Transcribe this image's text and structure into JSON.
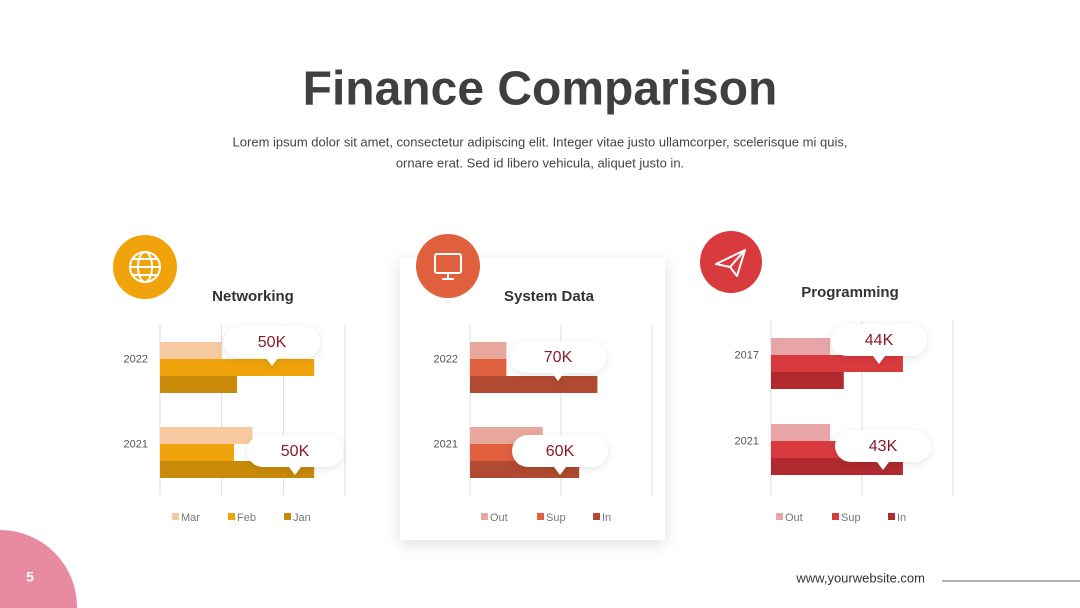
{
  "header": {
    "title": "Finance Comparison",
    "subtitle_line1": "Lorem ipsum dolor sit amet, consectetur adipiscing elit. Integer vitae justo ullamcorper, scelerisque mi quis,",
    "subtitle_line2": "ornare erat. Sed id libero vehicula, aliquet justo in."
  },
  "chart_data": [
    {
      "type": "bar",
      "orientation": "horizontal",
      "title": "Networking",
      "categories": [
        "2022",
        "2021"
      ],
      "xlim": [
        0,
        3
      ],
      "xticks": [
        0,
        1,
        2,
        3
      ],
      "grid": true,
      "series": [
        {
          "name": "Mar",
          "color": "#f6c9a0",
          "values": [
            1.0,
            1.5
          ]
        },
        {
          "name": "Feb",
          "color": "#f0a30a",
          "values": [
            2.5,
            1.2
          ]
        },
        {
          "name": "Jan",
          "color": "#c98a0a",
          "values": [
            1.25,
            2.5
          ]
        }
      ],
      "annotations": [
        "50K",
        "50K"
      ]
    },
    {
      "type": "bar",
      "orientation": "horizontal",
      "title": "System Data",
      "categories": [
        "2022",
        "2021"
      ],
      "xlim": [
        0,
        2
      ],
      "xticks": [
        0,
        1,
        2
      ],
      "grid": true,
      "series": [
        {
          "name": "Out",
          "color": "#e8a79c",
          "values": [
            0.4,
            0.8
          ]
        },
        {
          "name": "Sup",
          "color": "#e0603e",
          "values": [
            0.4,
            0.5
          ]
        },
        {
          "name": "In",
          "color": "#b04a30",
          "values": [
            1.4,
            1.2
          ]
        }
      ],
      "annotations": [
        "70K",
        "60K"
      ]
    },
    {
      "type": "bar",
      "orientation": "horizontal",
      "title": "Programming",
      "categories": [
        "2017",
        "2021"
      ],
      "xlim": [
        0,
        2
      ],
      "xticks": [
        0,
        1,
        2
      ],
      "grid": true,
      "series": [
        {
          "name": "Out",
          "color": "#e8a5a8",
          "values": [
            0.65,
            0.65
          ]
        },
        {
          "name": "Sup",
          "color": "#d93a3e",
          "values": [
            1.45,
            0.8
          ]
        },
        {
          "name": "In",
          "color": "#b02a2e",
          "values": [
            0.8,
            1.45
          ]
        }
      ],
      "annotations": [
        "44K",
        "43K"
      ]
    }
  ],
  "footer": {
    "page": "5",
    "website": "www,yourwebsite.com"
  }
}
